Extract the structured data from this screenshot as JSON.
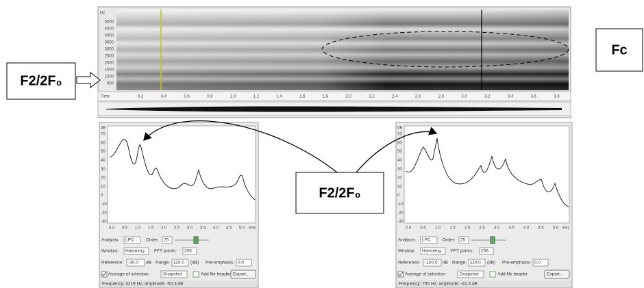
{
  "annotations": {
    "left_label": "F2/2F₀",
    "right_label": "Fc",
    "center_label": "F2/2F₀"
  },
  "spectrogram": {
    "freq_unit": "Hz",
    "freq_labels": [
      "5000",
      "4500",
      "4000",
      "3500",
      "3000",
      "2500",
      "2000",
      "1500",
      "1000",
      "500"
    ],
    "time_unit": "Time",
    "time_labels": [
      "0.2",
      "0.4",
      "0.6",
      "0.8",
      "1.0",
      "1.2",
      "1.4",
      "1.6",
      "1.8",
      "2.0",
      "2.2",
      "2.4",
      "2.6",
      "2.8",
      "3.0",
      "3.2",
      "3.4",
      "3.6",
      "3.8"
    ]
  },
  "panels": [
    {
      "y_unit": "dB",
      "y_labels": [
        "70",
        "60",
        "50",
        "40",
        "30",
        "20",
        "10",
        "0",
        "-10",
        "-20",
        "-30"
      ],
      "x_labels": [
        "0.0",
        "0.5",
        "1.0",
        "1.5",
        "2.0",
        "2.5",
        "3.0",
        "3.5",
        "4.0",
        "4.5",
        "5.0"
      ],
      "x_unit": "kHz",
      "analysis_label": "Analysis:",
      "analysis": "LPC",
      "order_label": "Order:",
      "order": "25",
      "window_label": "Window:",
      "window": "Hamming",
      "fft_label": "FFT points:",
      "fft": "256",
      "reference_label": "Reference:",
      "reference": "-30.0",
      "reference_unit": "dB",
      "range_label": "Range:",
      "range": "110.0",
      "range_unit": "(dB)",
      "preemph_label": "Pre-emphasis:",
      "preemph": "0.0",
      "average": "Average of selection",
      "snapshot": "Snapshot",
      "header": "Add file header",
      "export": "Export...",
      "status": "Frequency: 4219 Hz, amplitude: -60.3 dB"
    },
    {
      "y_unit": "dB",
      "y_labels": [
        "70",
        "60",
        "50",
        "40",
        "30",
        "20",
        "10",
        "0",
        "-10",
        "-20",
        "-30"
      ],
      "x_labels": [
        "0.0",
        "0.5",
        "1.0",
        "1.5",
        "2.0",
        "2.5",
        "3.0",
        "3.5",
        "4.0",
        "4.5",
        "5.0"
      ],
      "x_unit": "kHz",
      "analysis_label": "Analysis:",
      "analysis": "LPC",
      "order_label": "Order:",
      "order": "25",
      "window_label": "Window:",
      "window": "Hamming",
      "fft_label": "FFT points:",
      "fft": "256",
      "reference_label": "Reference:",
      "reference": "-120.0",
      "reference_unit": "dB",
      "range_label": "Range:",
      "range": "110.0",
      "range_unit": "(dB)",
      "preemph_label": "Pre-emphasis:",
      "preemph": "0.0",
      "average": "Average of selection",
      "snapshot": "Snapshot",
      "header": "Add file header",
      "export": "Export...",
      "status": "Frequency: 735 Hz, amplitude: -41.4 dB"
    }
  ]
}
